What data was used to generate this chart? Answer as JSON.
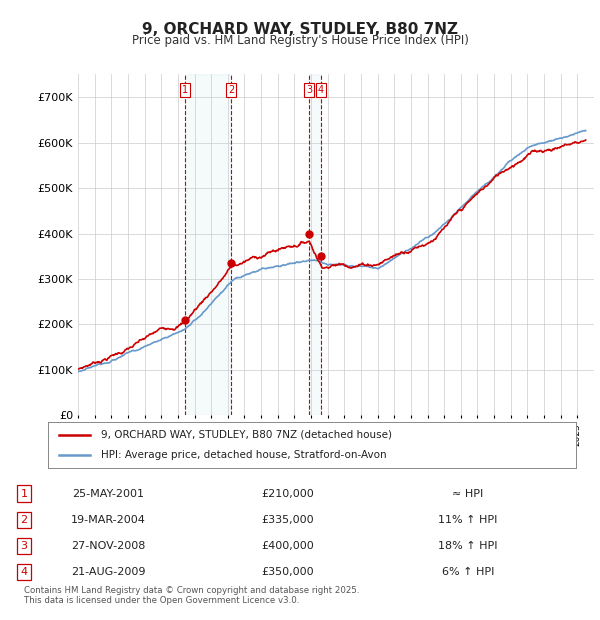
{
  "title": "9, ORCHARD WAY, STUDLEY, B80 7NZ",
  "subtitle": "Price paid vs. HM Land Registry's House Price Index (HPI)",
  "ylabel": "",
  "ylim": [
    0,
    750000
  ],
  "yticks": [
    0,
    100000,
    200000,
    300000,
    400000,
    500000,
    600000,
    700000
  ],
  "ytick_labels": [
    "£0",
    "£100K",
    "£200K",
    "£300K",
    "£400K",
    "£500K",
    "£600K",
    "£700K"
  ],
  "background_color": "#ffffff",
  "grid_color": "#cccccc",
  "line_color_red": "#cc0000",
  "line_color_blue": "#6699cc",
  "transactions": [
    {
      "num": 1,
      "date_label": "25-MAY-2001",
      "date_x": 2001.4,
      "price": 210000,
      "relation": "≈ HPI"
    },
    {
      "num": 2,
      "date_label": "19-MAR-2004",
      "date_x": 2004.2,
      "price": 335000,
      "relation": "11% ↑ HPI"
    },
    {
      "num": 3,
      "date_label": "27-NOV-2008",
      "date_x": 2008.9,
      "price": 400000,
      "relation": "18% ↑ HPI"
    },
    {
      "num": 4,
      "date_label": "21-AUG-2009",
      "date_x": 2009.6,
      "price": 350000,
      "relation": "6% ↑ HPI"
    }
  ],
  "legend_line1": "9, ORCHARD WAY, STUDLEY, B80 7NZ (detached house)",
  "legend_line2": "HPI: Average price, detached house, Stratford-on-Avon",
  "footer": "Contains HM Land Registry data © Crown copyright and database right 2025.\nThis data is licensed under the Open Government Licence v3.0.",
  "xmin": 1995,
  "xmax": 2026
}
